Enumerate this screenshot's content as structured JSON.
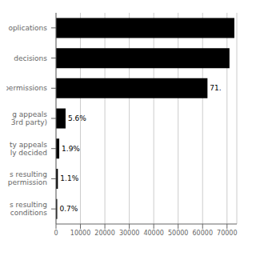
{
  "chart_data": {
    "type": "bar",
    "orientation": "horizontal",
    "categories": [
      "s resulting\nconditions",
      "s resulting\npermission",
      "ty appeals\nly decided",
      "g appeals\n3rd party)",
      "permissions",
      "decisions",
      "oplications"
    ],
    "values": [
      490,
      770,
      1330,
      3920,
      62000,
      71000,
      73000
    ],
    "color": "#000000",
    "xlim": [
      0,
      74000
    ],
    "xticks": [
      0,
      10000,
      20000,
      30000,
      40000,
      50000,
      60000,
      70000
    ],
    "grid": true,
    "annotations": [
      {
        "category": "s resulting\nconditions",
        "text": "0.7%"
      },
      {
        "category": "s resulting\npermission",
        "text": "1.1%"
      },
      {
        "category": "ty appeals\nly decided",
        "text": "1.9%"
      },
      {
        "category": "g appeals\n3rd party)",
        "text": "5.6%"
      },
      {
        "category": "permissions",
        "text": "71."
      }
    ]
  }
}
